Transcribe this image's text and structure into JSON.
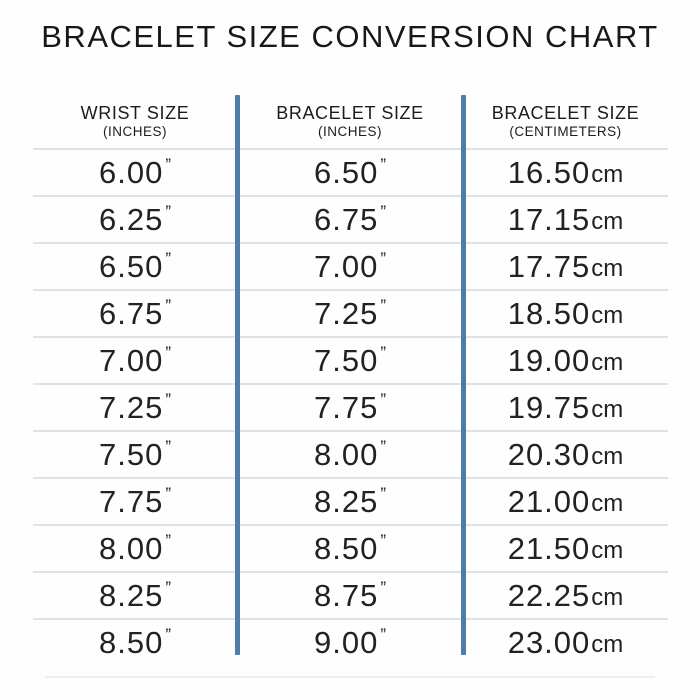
{
  "title": "BRACELET SIZE CONVERSION CHART",
  "table": {
    "columns": [
      {
        "label": "WRIST SIZE",
        "sublabel": "(INCHES)"
      },
      {
        "label": "BRACELET SIZE",
        "sublabel": "(INCHES)"
      },
      {
        "label": "BRACELET SIZE",
        "sublabel": "(CENTIMETERS)"
      }
    ],
    "inch_suffix": "”",
    "cm_suffix": "cm",
    "rows": [
      {
        "wrist_in": "6.00",
        "bracelet_in": "6.50",
        "bracelet_cm": "16.50"
      },
      {
        "wrist_in": "6.25",
        "bracelet_in": "6.75",
        "bracelet_cm": "17.15"
      },
      {
        "wrist_in": "6.50",
        "bracelet_in": "7.00",
        "bracelet_cm": "17.75"
      },
      {
        "wrist_in": "6.75",
        "bracelet_in": "7.25",
        "bracelet_cm": "18.50"
      },
      {
        "wrist_in": "7.00",
        "bracelet_in": "7.50",
        "bracelet_cm": "19.00"
      },
      {
        "wrist_in": "7.25",
        "bracelet_in": "7.75",
        "bracelet_cm": "19.75"
      },
      {
        "wrist_in": "7.50",
        "bracelet_in": "8.00",
        "bracelet_cm": "20.30"
      },
      {
        "wrist_in": "7.75",
        "bracelet_in": "8.25",
        "bracelet_cm": "21.00"
      },
      {
        "wrist_in": "8.00",
        "bracelet_in": "8.50",
        "bracelet_cm": "21.50"
      },
      {
        "wrist_in": "8.25",
        "bracelet_in": "8.75",
        "bracelet_cm": "22.25"
      },
      {
        "wrist_in": "8.50",
        "bracelet_in": "9.00",
        "bracelet_cm": "23.00"
      }
    ]
  },
  "chart_data": {
    "type": "table",
    "title": "BRACELET SIZE CONVERSION CHART",
    "columns": [
      "WRIST SIZE (INCHES)",
      "BRACELET SIZE (INCHES)",
      "BRACELET SIZE (CENTIMETERS)"
    ],
    "rows": [
      [
        "6.00",
        "6.50",
        "16.50"
      ],
      [
        "6.25",
        "6.75",
        "17.15"
      ],
      [
        "6.50",
        "7.00",
        "17.75"
      ],
      [
        "6.75",
        "7.25",
        "18.50"
      ],
      [
        "7.00",
        "7.50",
        "19.00"
      ],
      [
        "7.25",
        "7.75",
        "19.75"
      ],
      [
        "7.50",
        "8.00",
        "20.30"
      ],
      [
        "7.75",
        "8.25",
        "21.00"
      ],
      [
        "8.00",
        "8.50",
        "21.50"
      ],
      [
        "8.25",
        "8.75",
        "22.25"
      ],
      [
        "8.50",
        "9.00",
        "23.00"
      ]
    ],
    "units": {
      "col1": "inches",
      "col2": "inches",
      "col3": "centimeters"
    }
  },
  "colors": {
    "divider_blue": "#4f7ca8",
    "row_line": "#dde4e9",
    "text": "#1d1d1d",
    "background": "#fefefe"
  }
}
